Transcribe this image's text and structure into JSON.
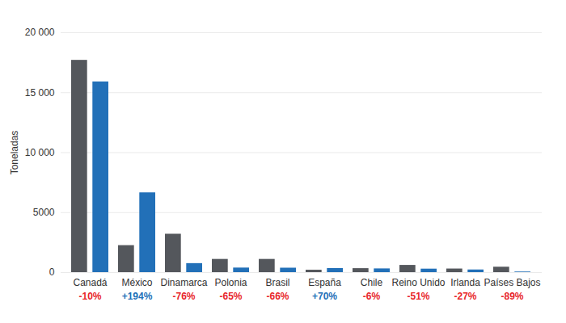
{
  "chart_data": {
    "type": "bar",
    "y_label": "Toneladas",
    "categories": [
      "Canadá",
      "México",
      "Dinamarca",
      "Polonia",
      "Brasil",
      "España",
      "Chile",
      "Reino Unido",
      "Irlanda",
      "Países Bajos"
    ],
    "series": [
      {
        "color": "#54575c",
        "values": [
          17700,
          2250,
          3200,
          1100,
          1100,
          200,
          330,
          600,
          300,
          450
        ]
      },
      {
        "color": "#2270b8",
        "values": [
          15900,
          6650,
          750,
          380,
          370,
          340,
          310,
          290,
          220,
          50
        ]
      }
    ],
    "annotations": [
      {
        "text": "-10%",
        "color": "#e8262b"
      },
      {
        "text": "+194%",
        "color": "#2270b8"
      },
      {
        "text": "-76%",
        "color": "#e8262b"
      },
      {
        "text": "-65%",
        "color": "#e8262b"
      },
      {
        "text": "-66%",
        "color": "#e8262b"
      },
      {
        "text": "+70%",
        "color": "#2270b8"
      },
      {
        "text": "-6%",
        "color": "#e8262b"
      },
      {
        "text": "-51%",
        "color": "#e8262b"
      },
      {
        "text": "-27%",
        "color": "#e8262b"
      },
      {
        "text": "-89%",
        "color": "#e8262b"
      }
    ],
    "ylim": [
      0,
      20000
    ],
    "yticks": [
      0,
      5000,
      {
        "value": 10000,
        "label": "10 000"
      },
      {
        "value": 15000,
        "label": "15 000"
      },
      {
        "value": 20000,
        "label": "20 000"
      }
    ],
    "grid": true
  }
}
